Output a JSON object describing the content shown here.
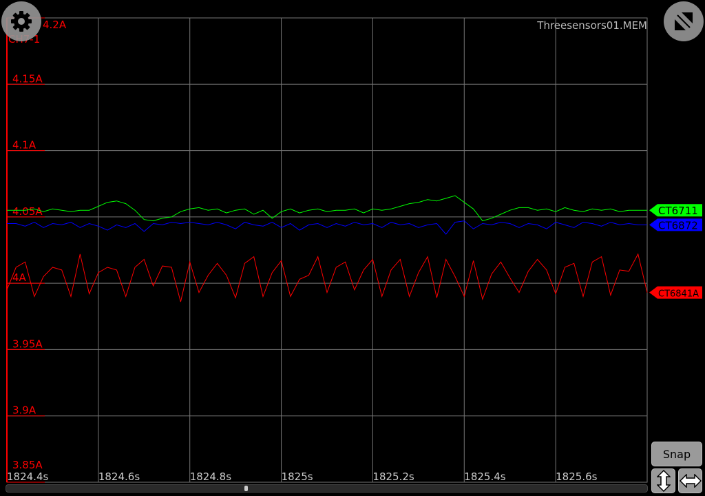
{
  "file_name": "Threesensors01.MEM",
  "channel_label": "CH7-1",
  "buttons": {
    "snap": "Snap",
    "settings_icon": "gear-icon",
    "resize_icon": "resize-diagonal-icon",
    "vertical_icon": "arrow-vertical-icon",
    "horizontal_icon": "arrow-horizontal-icon"
  },
  "chart_data": {
    "type": "line",
    "xlim": [
      1824.4,
      1825.8
    ],
    "ylim": [
      3.85,
      4.2
    ],
    "grid": true,
    "x_ticks": [
      "1824.4s",
      "1824.6s",
      "1824.8s",
      "1825s",
      "1825.2s",
      "1825.4s",
      "1825.6s"
    ],
    "x_tick_values": [
      1824.4,
      1824.6,
      1824.8,
      1825.0,
      1825.2,
      1825.4,
      1825.6
    ],
    "y_ticks": [
      "4.2A",
      "4.15A",
      "4.1A",
      "4.05A",
      "4A",
      "3.95A",
      "3.9A",
      "3.85A"
    ],
    "y_tick_values": [
      4.2,
      4.15,
      4.1,
      4.05,
      4.0,
      3.95,
      3.9,
      3.85
    ],
    "x_start": 1824.4,
    "x_step": 0.02,
    "series": [
      {
        "name": "CT6711",
        "color": "#00ff00",
        "values": [
          4.055,
          4.055,
          4.055,
          4.056,
          4.054,
          4.056,
          4.055,
          4.054,
          4.055,
          4.055,
          4.058,
          4.061,
          4.062,
          4.06,
          4.055,
          4.048,
          4.047,
          4.049,
          4.05,
          4.054,
          4.056,
          4.057,
          4.055,
          4.056,
          4.053,
          4.055,
          4.056,
          4.052,
          4.055,
          4.049,
          4.054,
          4.056,
          4.053,
          4.055,
          4.056,
          4.054,
          4.055,
          4.055,
          4.056,
          4.053,
          4.056,
          4.055,
          4.056,
          4.058,
          4.06,
          4.061,
          4.063,
          4.062,
          4.064,
          4.066,
          4.061,
          4.056,
          4.047,
          4.049,
          4.052,
          4.055,
          4.057,
          4.057,
          4.055,
          4.056,
          4.054,
          4.057,
          4.055,
          4.054,
          4.056,
          4.055,
          4.056,
          4.054,
          4.055,
          4.055,
          4.055
        ]
      },
      {
        "name": "CT6872",
        "color": "#0000ff",
        "values": [
          4.045,
          4.045,
          4.043,
          4.046,
          4.042,
          4.045,
          4.044,
          4.046,
          4.042,
          4.045,
          4.043,
          4.04,
          4.044,
          4.042,
          4.045,
          4.039,
          4.045,
          4.044,
          4.046,
          4.045,
          4.046,
          4.045,
          4.044,
          4.046,
          4.044,
          4.041,
          4.046,
          4.044,
          4.043,
          4.046,
          4.042,
          4.045,
          4.04,
          4.044,
          4.045,
          4.042,
          4.045,
          4.043,
          4.046,
          4.044,
          4.045,
          4.042,
          4.046,
          4.044,
          4.045,
          4.042,
          4.044,
          4.045,
          4.037,
          4.046,
          4.047,
          4.041,
          4.045,
          4.044,
          4.046,
          4.045,
          4.042,
          4.045,
          4.044,
          4.041,
          4.046,
          4.044,
          4.042,
          4.046,
          4.045,
          4.043,
          4.046,
          4.044,
          4.045,
          4.044,
          4.044
        ]
      },
      {
        "name": "CT6841A",
        "color": "#ff0000",
        "values": [
          3.995,
          4.012,
          4.016,
          3.99,
          4.005,
          4.012,
          4.01,
          3.99,
          4.022,
          3.992,
          4.008,
          4.012,
          4.01,
          3.99,
          4.012,
          4.018,
          3.998,
          4.013,
          4.012,
          3.986,
          4.016,
          3.993,
          4.006,
          4.015,
          4.006,
          3.989,
          4.015,
          4.02,
          3.99,
          4.008,
          4.017,
          3.99,
          4.003,
          4.006,
          4.02,
          3.993,
          4.012,
          4.016,
          3.995,
          4.01,
          4.018,
          3.99,
          4.01,
          4.018,
          3.99,
          4.008,
          4.02,
          3.989,
          4.018,
          4.005,
          3.99,
          4.017,
          3.988,
          4.007,
          4.016,
          4.004,
          3.993,
          4.009,
          4.018,
          4.01,
          3.992,
          4.012,
          4.015,
          3.99,
          4.016,
          4.02,
          3.991,
          4.01,
          4.009,
          4.022,
          3.993
        ]
      }
    ]
  }
}
